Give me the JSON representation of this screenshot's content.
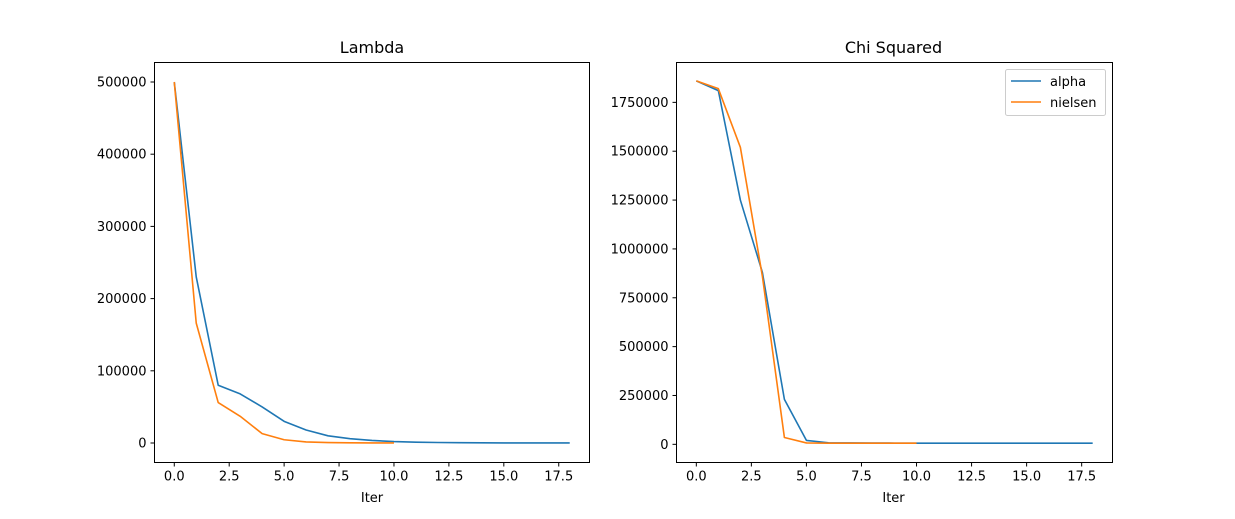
{
  "chart_data": [
    {
      "type": "line",
      "title": "Lambda",
      "xlabel": "Iter",
      "ylabel": "",
      "xlim": [
        -0.9,
        18.9
      ],
      "ylim": [
        -27000,
        527000
      ],
      "xticks": [
        0.0,
        2.5,
        5.0,
        7.5,
        10.0,
        12.5,
        15.0,
        17.5
      ],
      "xtick_labels": [
        "0.0",
        "2.5",
        "5.0",
        "7.5",
        "10.0",
        "12.5",
        "15.0",
        "17.5"
      ],
      "yticks": [
        0,
        100000,
        200000,
        300000,
        400000,
        500000
      ],
      "ytick_labels": [
        "0",
        "100000",
        "200000",
        "300000",
        "400000",
        "500000"
      ],
      "grid": false,
      "series": [
        {
          "color": "#1f77b4",
          "x": [
            0,
            1,
            2,
            3,
            4,
            5,
            6,
            7,
            8,
            9,
            10,
            11,
            12,
            13,
            14,
            15,
            16,
            17,
            18
          ],
          "y": [
            500000,
            230000,
            80000,
            68000,
            50000,
            30000,
            18000,
            10000,
            6000,
            3500,
            2000,
            1200,
            700,
            400,
            250,
            150,
            100,
            60,
            30
          ]
        },
        {
          "color": "#ff7f0e",
          "x": [
            0,
            1,
            2,
            3,
            4,
            5,
            6,
            7,
            8,
            9,
            10
          ],
          "y": [
            500000,
            166000,
            56000,
            37000,
            13000,
            4500,
            1500,
            600,
            200,
            80,
            30
          ]
        }
      ]
    },
    {
      "type": "line",
      "title": "Chi Squared",
      "xlabel": "Iter",
      "ylabel": "",
      "xlim": [
        -0.9,
        18.9
      ],
      "ylim": [
        -93000,
        1954000
      ],
      "xticks": [
        0.0,
        2.5,
        5.0,
        7.5,
        10.0,
        12.5,
        15.0,
        17.5
      ],
      "xtick_labels": [
        "0.0",
        "2.5",
        "5.0",
        "7.5",
        "10.0",
        "12.5",
        "15.0",
        "17.5"
      ],
      "yticks": [
        0,
        250000,
        500000,
        750000,
        1000000,
        1250000,
        1500000,
        1750000
      ],
      "ytick_labels": [
        "0",
        "250000",
        "500000",
        "750000",
        "1000000",
        "1250000",
        "1500000",
        "1750000"
      ],
      "grid": false,
      "legend": {
        "placement": "top-right"
      },
      "series": [
        {
          "name": "alpha",
          "color": "#1f77b4",
          "x": [
            0,
            1,
            2,
            3,
            4,
            5,
            6,
            7,
            8,
            9,
            10,
            11,
            12,
            13,
            14,
            15,
            16,
            17,
            18
          ],
          "y": [
            1860000,
            1810000,
            1250000,
            880000,
            230000,
            20000,
            8000,
            7000,
            6500,
            6200,
            6000,
            5900,
            5800,
            5800,
            5700,
            5700,
            5700,
            5700,
            5700
          ]
        },
        {
          "name": "nielsen",
          "color": "#ff7f0e",
          "x": [
            0,
            1,
            2,
            3,
            4,
            5,
            6,
            7,
            8,
            9,
            10
          ],
          "y": [
            1860000,
            1820000,
            1520000,
            860000,
            35000,
            7000,
            6000,
            5800,
            5700,
            5700,
            5700
          ]
        }
      ]
    }
  ]
}
